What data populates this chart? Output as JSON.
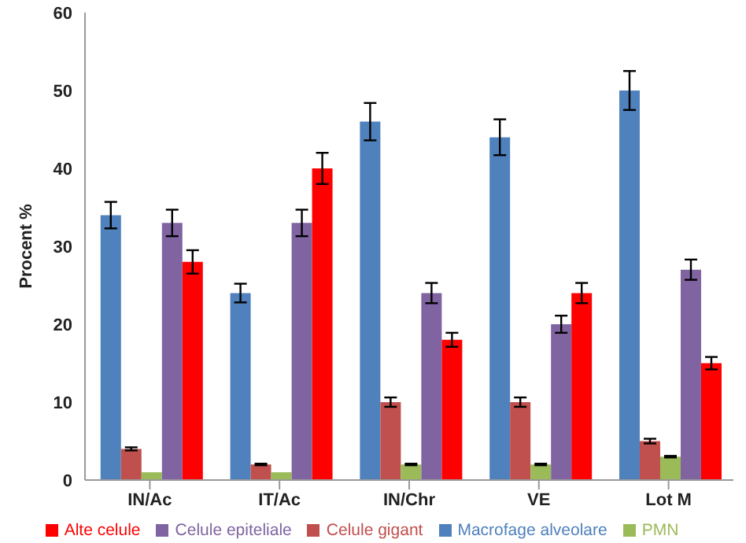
{
  "chart_data": {
    "type": "bar",
    "ylabel": "Procent %",
    "categories": [
      "IN/Ac",
      "IT/Ac",
      "IN/Chr",
      "VE",
      "Lot M"
    ],
    "series": [
      {
        "name": "Macrofage alveolare",
        "color": "#4f81bd",
        "values": [
          34,
          24,
          46,
          44,
          50
        ],
        "errors": [
          1.7,
          1.2,
          2.4,
          2.3,
          2.5
        ]
      },
      {
        "name": "Celule gigant",
        "color": "#c0504d",
        "values": [
          4,
          2,
          10,
          10,
          5
        ],
        "errors": [
          0.2,
          0.1,
          0.6,
          0.6,
          0.3
        ]
      },
      {
        "name": "PMN",
        "color": "#9bbb59",
        "values": [
          1,
          1,
          2,
          2,
          3
        ],
        "errors": [
          null,
          null,
          0.1,
          0.1,
          0.1
        ]
      },
      {
        "name": "Celule epiteliale",
        "color": "#8064a2",
        "values": [
          33,
          33,
          24,
          20,
          27
        ],
        "errors": [
          1.7,
          1.7,
          1.3,
          1.1,
          1.3
        ]
      },
      {
        "name": "Alte celule",
        "color": "#ff0000",
        "values": [
          28,
          40,
          18,
          24,
          15
        ],
        "errors": [
          1.5,
          2,
          0.9,
          1.3,
          0.8
        ]
      }
    ],
    "ylim": [
      0,
      60
    ],
    "yticks": [
      0,
      10,
      20,
      30,
      40,
      50,
      60
    ],
    "grid": false,
    "legend": "bottom"
  }
}
